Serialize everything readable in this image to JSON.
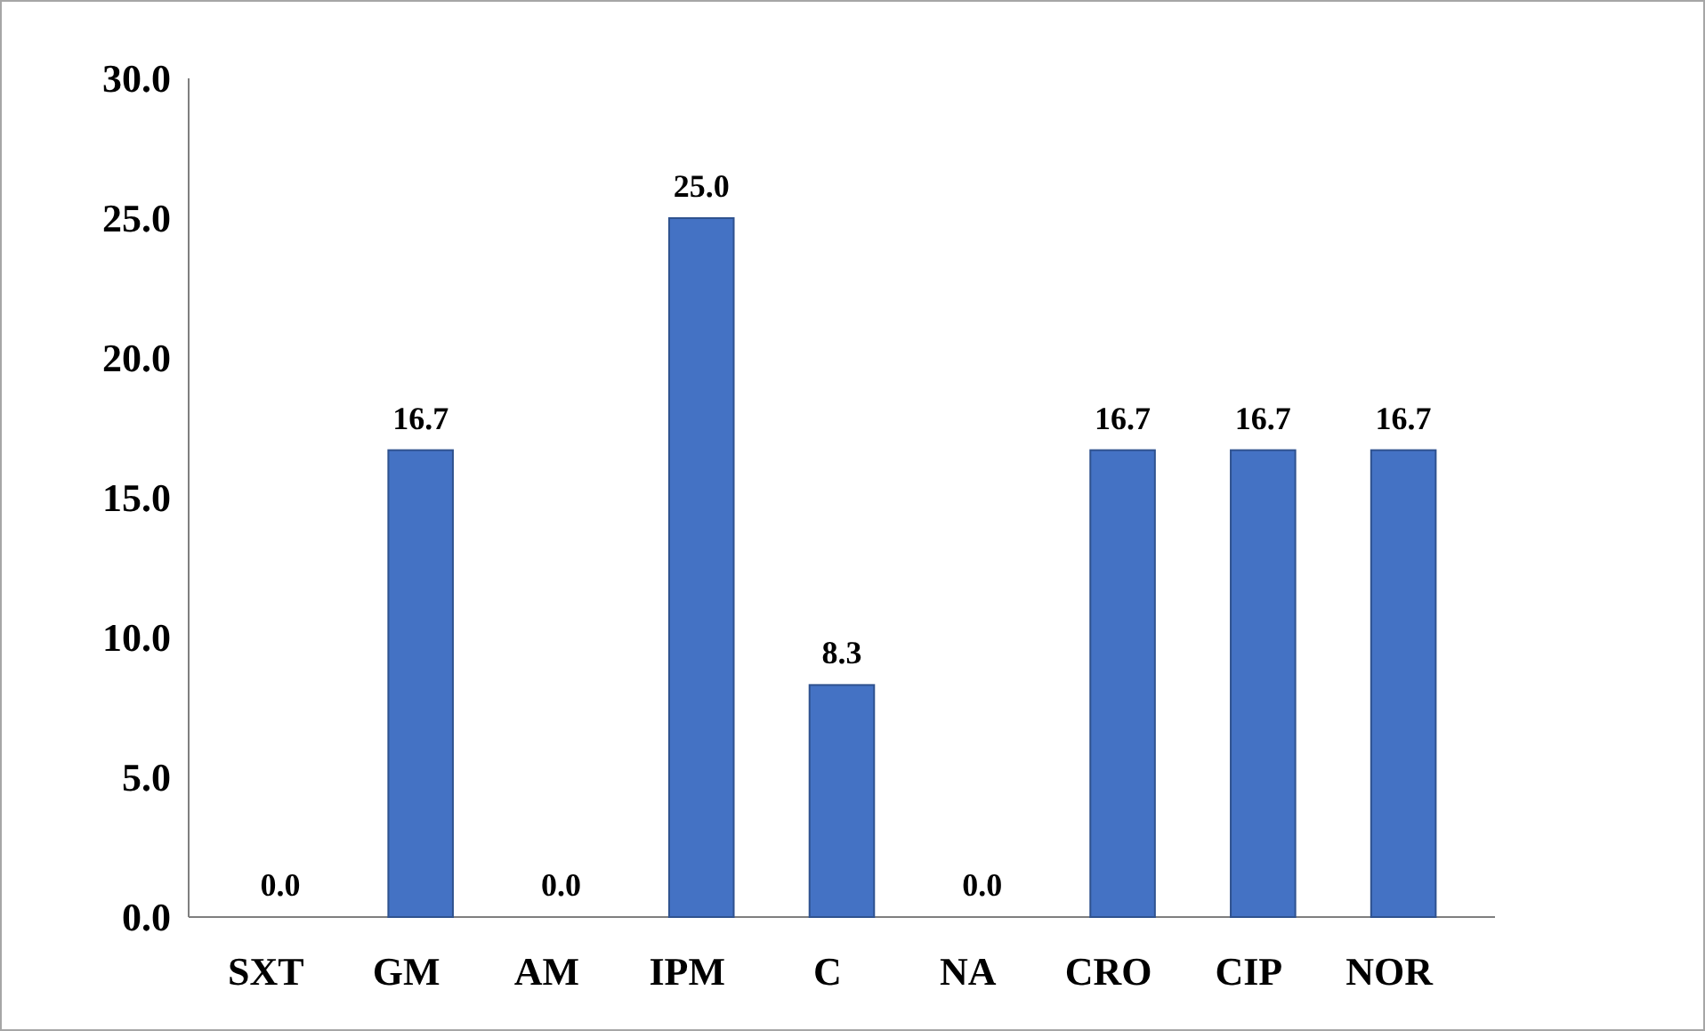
{
  "chart_data": {
    "type": "bar",
    "categories": [
      "SXT",
      "GM",
      "AM",
      "IPM",
      "C",
      "NA",
      "CRO",
      "CIP",
      "NOR"
    ],
    "values": [
      0.0,
      16.7,
      0.0,
      25.0,
      8.3,
      0.0,
      16.7,
      16.7,
      16.7
    ],
    "value_labels": [
      "0.0",
      "16.7",
      "0.0",
      "25.0",
      "8.3",
      "0.0",
      "16.7",
      "16.7",
      "16.7"
    ],
    "color": "#4472c4",
    "ylim": [
      0,
      30
    ],
    "yticks": [
      {
        "value": 0,
        "label": "0.0"
      },
      {
        "value": 5,
        "label": "5.0"
      },
      {
        "value": 10,
        "label": "10.0"
      },
      {
        "value": 15,
        "label": "15.0"
      },
      {
        "value": 20,
        "label": "20.0"
      },
      {
        "value": 25,
        "label": "25.0"
      },
      {
        "value": 30,
        "label": "30.0"
      }
    ],
    "grid": false
  }
}
